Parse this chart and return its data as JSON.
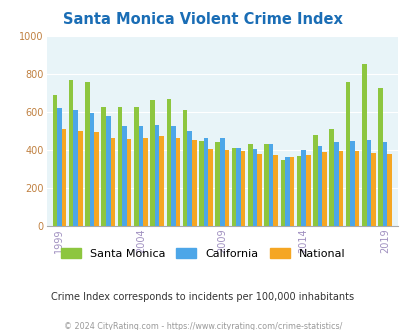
{
  "title": "Santa Monica Violent Crime Index",
  "years": [
    1999,
    2000,
    2001,
    2002,
    2003,
    2004,
    2005,
    2006,
    2007,
    2008,
    2009,
    2010,
    2011,
    2012,
    2013,
    2014,
    2015,
    2016,
    2017,
    2018,
    2019
  ],
  "santa_monica": [
    690,
    770,
    760,
    630,
    630,
    625,
    665,
    670,
    610,
    450,
    445,
    410,
    430,
    435,
    350,
    370,
    480,
    510,
    760,
    855,
    725
  ],
  "california": [
    620,
    610,
    595,
    580,
    525,
    525,
    535,
    525,
    500,
    465,
    465,
    410,
    405,
    430,
    365,
    400,
    420,
    445,
    450,
    455,
    445
  ],
  "national": [
    510,
    500,
    495,
    465,
    460,
    465,
    475,
    465,
    455,
    405,
    400,
    395,
    380,
    375,
    365,
    375,
    390,
    395,
    395,
    385,
    380
  ],
  "colors": {
    "santa_monica": "#8dc63f",
    "california": "#4da6e8",
    "national": "#f5a623"
  },
  "ylim": [
    0,
    1000
  ],
  "yticks": [
    0,
    200,
    400,
    600,
    800,
    1000
  ],
  "xtick_years": [
    1999,
    2004,
    2009,
    2014,
    2019
  ],
  "bg_color": "#e8f4f8",
  "title_color": "#1a6db5",
  "ytick_color": "#c08040",
  "xtick_color": "#a090c0",
  "legend_labels": [
    "Santa Monica",
    "California",
    "National"
  ],
  "subtitle": "Crime Index corresponds to incidents per 100,000 inhabitants",
  "footer": "© 2024 CityRating.com - https://www.cityrating.com/crime-statistics/",
  "bar_width": 0.28
}
